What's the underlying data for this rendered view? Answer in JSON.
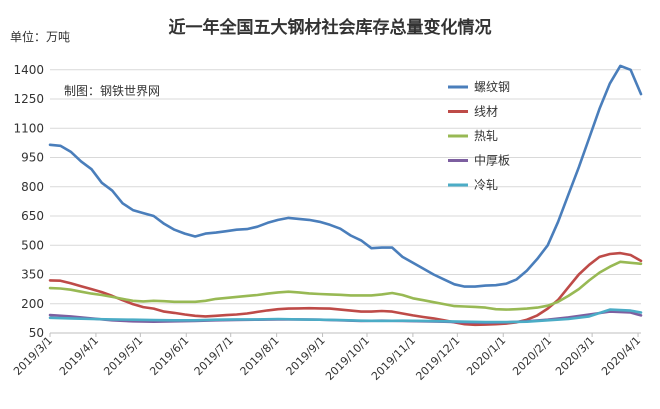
{
  "chart_data": {
    "type": "line",
    "title": "近一年全国五大钢材社会库存总量变化情况",
    "unit_label": "单位：万吨",
    "source_label": "制图：钢铁世界网",
    "ylim": [
      50,
      1450
    ],
    "y_ticks": [
      50,
      200,
      350,
      500,
      650,
      800,
      950,
      1100,
      1250,
      1400
    ],
    "x_tick_labels": [
      "2019/3/1",
      "2019/4/1",
      "2019/5/1",
      "2019/6/1",
      "2019/7/1",
      "2019/8/1",
      "2019/9/1",
      "2019/10/1",
      "2019/11/1",
      "2019/12/1",
      "2020/1/1",
      "2020/2/1",
      "2020/3/1",
      "2020/4/1"
    ],
    "x_ticks": [
      "2019-03-01",
      "2019-04-01",
      "2019-05-01",
      "2019-06-01",
      "2019-07-01",
      "2019-08-01",
      "2019-09-01",
      "2019-10-01",
      "2019-11-01",
      "2019-12-01",
      "2020-01-01",
      "2020-02-01",
      "2020-03-01",
      "2020-04-01"
    ],
    "x_range": [
      "2019-03-01",
      "2020-04-03"
    ],
    "grid": "horizontal",
    "legend_position": "right",
    "series": [
      {
        "name": "螺纹钢",
        "color": "#4a7ebb",
        "points": [
          [
            "2019-03-01",
            1015
          ],
          [
            "2019-03-08",
            1010
          ],
          [
            "2019-03-15",
            980
          ],
          [
            "2019-03-22",
            930
          ],
          [
            "2019-03-29",
            890
          ],
          [
            "2019-04-05",
            820
          ],
          [
            "2019-04-12",
            780
          ],
          [
            "2019-04-19",
            715
          ],
          [
            "2019-04-26",
            680
          ],
          [
            "2019-05-03",
            665
          ],
          [
            "2019-05-10",
            650
          ],
          [
            "2019-05-17",
            610
          ],
          [
            "2019-05-24",
            580
          ],
          [
            "2019-05-31",
            560
          ],
          [
            "2019-06-07",
            545
          ],
          [
            "2019-06-14",
            560
          ],
          [
            "2019-06-21",
            565
          ],
          [
            "2019-06-28",
            572
          ],
          [
            "2019-07-05",
            580
          ],
          [
            "2019-07-12",
            583
          ],
          [
            "2019-07-19",
            595
          ],
          [
            "2019-07-26",
            615
          ],
          [
            "2019-08-02",
            630
          ],
          [
            "2019-08-09",
            640
          ],
          [
            "2019-08-16",
            635
          ],
          [
            "2019-08-23",
            630
          ],
          [
            "2019-08-30",
            620
          ],
          [
            "2019-09-06",
            605
          ],
          [
            "2019-09-13",
            585
          ],
          [
            "2019-09-20",
            550
          ],
          [
            "2019-09-27",
            525
          ],
          [
            "2019-10-04",
            485
          ],
          [
            "2019-10-11",
            488
          ],
          [
            "2019-10-18",
            488
          ],
          [
            "2019-10-25",
            440
          ],
          [
            "2019-11-01",
            410
          ],
          [
            "2019-11-08",
            380
          ],
          [
            "2019-11-15",
            350
          ],
          [
            "2019-11-22",
            325
          ],
          [
            "2019-11-29",
            300
          ],
          [
            "2019-12-06",
            288
          ],
          [
            "2019-12-13",
            288
          ],
          [
            "2019-12-20",
            293
          ],
          [
            "2019-12-27",
            295
          ],
          [
            "2020-01-03",
            303
          ],
          [
            "2020-01-10",
            325
          ],
          [
            "2020-01-17",
            370
          ],
          [
            "2020-01-24",
            430
          ],
          [
            "2020-01-31",
            500
          ],
          [
            "2020-02-07",
            620
          ],
          [
            "2020-02-14",
            760
          ],
          [
            "2020-02-21",
            900
          ],
          [
            "2020-02-28",
            1050
          ],
          [
            "2020-03-06",
            1200
          ],
          [
            "2020-03-13",
            1330
          ],
          [
            "2020-03-20",
            1420
          ],
          [
            "2020-03-27",
            1400
          ],
          [
            "2020-04-03",
            1275
          ]
        ]
      },
      {
        "name": "线材",
        "color": "#be4b48",
        "points": [
          [
            "2019-03-01",
            320
          ],
          [
            "2019-03-08",
            318
          ],
          [
            "2019-03-15",
            305
          ],
          [
            "2019-03-22",
            290
          ],
          [
            "2019-03-29",
            275
          ],
          [
            "2019-04-05",
            260
          ],
          [
            "2019-04-12",
            240
          ],
          [
            "2019-04-19",
            218
          ],
          [
            "2019-04-26",
            198
          ],
          [
            "2019-05-03",
            183
          ],
          [
            "2019-05-10",
            175
          ],
          [
            "2019-05-17",
            160
          ],
          [
            "2019-05-24",
            153
          ],
          [
            "2019-05-31",
            145
          ],
          [
            "2019-06-07",
            138
          ],
          [
            "2019-06-14",
            135
          ],
          [
            "2019-06-21",
            138
          ],
          [
            "2019-06-28",
            142
          ],
          [
            "2019-07-05",
            145
          ],
          [
            "2019-07-12",
            150
          ],
          [
            "2019-07-19",
            158
          ],
          [
            "2019-07-26",
            166
          ],
          [
            "2019-08-02",
            172
          ],
          [
            "2019-08-09",
            175
          ],
          [
            "2019-08-16",
            176
          ],
          [
            "2019-08-23",
            177
          ],
          [
            "2019-08-30",
            176
          ],
          [
            "2019-09-06",
            175
          ],
          [
            "2019-09-13",
            170
          ],
          [
            "2019-09-20",
            165
          ],
          [
            "2019-09-27",
            160
          ],
          [
            "2019-10-04",
            160
          ],
          [
            "2019-10-11",
            163
          ],
          [
            "2019-10-18",
            160
          ],
          [
            "2019-10-25",
            150
          ],
          [
            "2019-11-01",
            140
          ],
          [
            "2019-11-08",
            132
          ],
          [
            "2019-11-15",
            125
          ],
          [
            "2019-11-22",
            115
          ],
          [
            "2019-11-29",
            105
          ],
          [
            "2019-12-06",
            95
          ],
          [
            "2019-12-13",
            92
          ],
          [
            "2019-12-20",
            93
          ],
          [
            "2019-12-27",
            95
          ],
          [
            "2020-01-03",
            98
          ],
          [
            "2020-01-10",
            105
          ],
          [
            "2020-01-17",
            118
          ],
          [
            "2020-01-24",
            140
          ],
          [
            "2020-01-31",
            175
          ],
          [
            "2020-02-07",
            220
          ],
          [
            "2020-02-14",
            285
          ],
          [
            "2020-02-21",
            350
          ],
          [
            "2020-02-28",
            400
          ],
          [
            "2020-03-06",
            440
          ],
          [
            "2020-03-13",
            455
          ],
          [
            "2020-03-20",
            460
          ],
          [
            "2020-03-27",
            450
          ],
          [
            "2020-04-03",
            420
          ]
        ]
      },
      {
        "name": "热轧",
        "color": "#98b954",
        "points": [
          [
            "2019-03-01",
            280
          ],
          [
            "2019-03-08",
            278
          ],
          [
            "2019-03-15",
            272
          ],
          [
            "2019-03-22",
            262
          ],
          [
            "2019-03-29",
            252
          ],
          [
            "2019-04-05",
            245
          ],
          [
            "2019-04-12",
            235
          ],
          [
            "2019-04-19",
            225
          ],
          [
            "2019-04-26",
            215
          ],
          [
            "2019-05-03",
            212
          ],
          [
            "2019-05-10",
            215
          ],
          [
            "2019-05-17",
            213
          ],
          [
            "2019-05-24",
            210
          ],
          [
            "2019-05-31",
            210
          ],
          [
            "2019-06-07",
            210
          ],
          [
            "2019-06-14",
            215
          ],
          [
            "2019-06-21",
            225
          ],
          [
            "2019-06-28",
            230
          ],
          [
            "2019-07-05",
            235
          ],
          [
            "2019-07-12",
            240
          ],
          [
            "2019-07-19",
            245
          ],
          [
            "2019-07-26",
            252
          ],
          [
            "2019-08-02",
            258
          ],
          [
            "2019-08-09",
            262
          ],
          [
            "2019-08-16",
            258
          ],
          [
            "2019-08-23",
            253
          ],
          [
            "2019-08-30",
            250
          ],
          [
            "2019-09-06",
            248
          ],
          [
            "2019-09-13",
            246
          ],
          [
            "2019-09-20",
            243
          ],
          [
            "2019-09-27",
            243
          ],
          [
            "2019-10-04",
            243
          ],
          [
            "2019-10-11",
            248
          ],
          [
            "2019-10-18",
            255
          ],
          [
            "2019-10-25",
            245
          ],
          [
            "2019-11-01",
            228
          ],
          [
            "2019-11-08",
            218
          ],
          [
            "2019-11-15",
            208
          ],
          [
            "2019-11-22",
            198
          ],
          [
            "2019-11-29",
            188
          ],
          [
            "2019-12-06",
            186
          ],
          [
            "2019-12-13",
            184
          ],
          [
            "2019-12-20",
            180
          ],
          [
            "2019-12-27",
            172
          ],
          [
            "2020-01-03",
            170
          ],
          [
            "2020-01-10",
            172
          ],
          [
            "2020-01-17",
            175
          ],
          [
            "2020-01-24",
            180
          ],
          [
            "2020-01-31",
            190
          ],
          [
            "2020-02-07",
            210
          ],
          [
            "2020-02-14",
            240
          ],
          [
            "2020-02-21",
            275
          ],
          [
            "2020-02-28",
            320
          ],
          [
            "2020-03-06",
            360
          ],
          [
            "2020-03-13",
            390
          ],
          [
            "2020-03-20",
            415
          ],
          [
            "2020-03-27",
            410
          ],
          [
            "2020-04-03",
            405
          ]
        ]
      },
      {
        "name": "中厚板",
        "color": "#7d5fa0",
        "points": [
          [
            "2019-03-01",
            142
          ],
          [
            "2019-03-15",
            135
          ],
          [
            "2019-03-29",
            125
          ],
          [
            "2019-04-12",
            115
          ],
          [
            "2019-04-26",
            110
          ],
          [
            "2019-05-10",
            108
          ],
          [
            "2019-05-24",
            110
          ],
          [
            "2019-06-07",
            112
          ],
          [
            "2019-06-21",
            115
          ],
          [
            "2019-07-05",
            117
          ],
          [
            "2019-07-19",
            118
          ],
          [
            "2019-08-02",
            120
          ],
          [
            "2019-08-16",
            120
          ],
          [
            "2019-08-30",
            118
          ],
          [
            "2019-09-13",
            115
          ],
          [
            "2019-09-27",
            112
          ],
          [
            "2019-10-11",
            113
          ],
          [
            "2019-10-25",
            112
          ],
          [
            "2019-11-08",
            110
          ],
          [
            "2019-11-22",
            108
          ],
          [
            "2019-12-06",
            105
          ],
          [
            "2019-12-20",
            103
          ],
          [
            "2020-01-03",
            105
          ],
          [
            "2020-01-17",
            110
          ],
          [
            "2020-01-31",
            118
          ],
          [
            "2020-02-14",
            130
          ],
          [
            "2020-02-28",
            145
          ],
          [
            "2020-03-13",
            160
          ],
          [
            "2020-03-27",
            155
          ],
          [
            "2020-04-03",
            140
          ]
        ]
      },
      {
        "name": "冷轧",
        "color": "#4bacc6",
        "points": [
          [
            "2019-03-01",
            128
          ],
          [
            "2019-03-15",
            125
          ],
          [
            "2019-03-29",
            122
          ],
          [
            "2019-04-12",
            120
          ],
          [
            "2019-04-26",
            118
          ],
          [
            "2019-05-10",
            116
          ],
          [
            "2019-05-24",
            115
          ],
          [
            "2019-06-07",
            115
          ],
          [
            "2019-06-21",
            118
          ],
          [
            "2019-07-05",
            120
          ],
          [
            "2019-07-19",
            120
          ],
          [
            "2019-08-02",
            122
          ],
          [
            "2019-08-16",
            120
          ],
          [
            "2019-08-30",
            118
          ],
          [
            "2019-09-13",
            116
          ],
          [
            "2019-09-27",
            113
          ],
          [
            "2019-10-11",
            112
          ],
          [
            "2019-10-25",
            113
          ],
          [
            "2019-11-08",
            112
          ],
          [
            "2019-11-22",
            110
          ],
          [
            "2019-12-06",
            108
          ],
          [
            "2019-12-20",
            106
          ],
          [
            "2020-01-03",
            106
          ],
          [
            "2020-01-17",
            108
          ],
          [
            "2020-01-31",
            115
          ],
          [
            "2020-02-14",
            122
          ],
          [
            "2020-02-28",
            135
          ],
          [
            "2020-03-13",
            170
          ],
          [
            "2020-03-27",
            165
          ],
          [
            "2020-04-03",
            155
          ]
        ]
      }
    ]
  }
}
